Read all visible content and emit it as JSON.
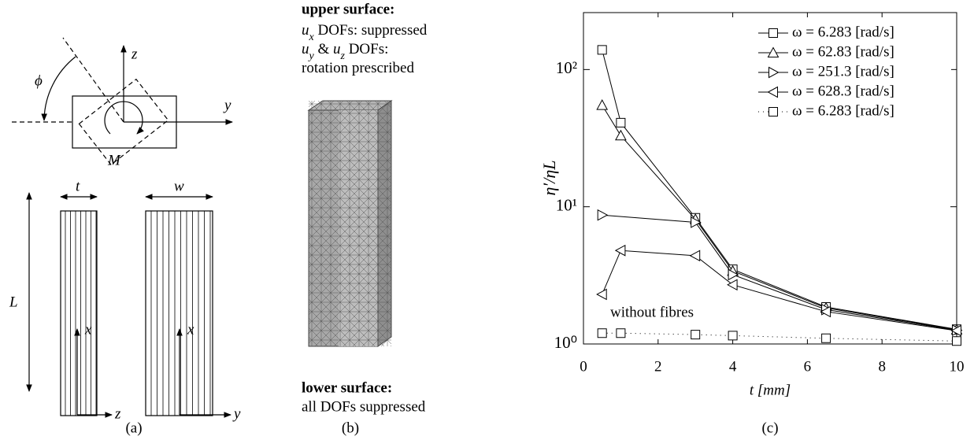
{
  "panel_a": {
    "labels": {
      "phi": "ϕ",
      "z_top": "z",
      "y_top": "y",
      "moment": "M",
      "thickness": "t",
      "width": "w",
      "length": "L",
      "x_left": "x",
      "z_bottom": "z",
      "x_right": "x",
      "y_bottom": "y"
    },
    "caption": "(a)"
  },
  "panel_b": {
    "upper_heading": "upper surface:",
    "upper_lines": [
      [
        {
          "text": "u"
        },
        {
          "text": "x",
          "sub": true
        },
        {
          "text": " DOFs: suppressed"
        }
      ],
      [
        {
          "text": "u"
        },
        {
          "text": "y",
          "sub": true
        },
        {
          "text": " & "
        },
        {
          "text": "u"
        },
        {
          "text": "z",
          "sub": true
        },
        {
          "text": " DOFs:"
        }
      ],
      [
        {
          "text": "rotation prescribed"
        }
      ]
    ],
    "lower_heading": "lower surface:",
    "lower_lines": [
      "all DOFs suppressed"
    ],
    "caption": "(b)"
  },
  "chart_data": {
    "type": "line",
    "xlabel": "t [mm]",
    "ylabel": "η′/ηL",
    "caption": "(c)",
    "xlim": [
      0,
      10
    ],
    "ylim": [
      1,
      260
    ],
    "yscale": "log",
    "xticks": [
      0,
      2,
      4,
      6,
      8,
      10
    ],
    "yticks": [
      {
        "value": 1,
        "label": "10⁰"
      },
      {
        "value": 10,
        "label": "10¹"
      },
      {
        "value": 100,
        "label": "10²"
      }
    ],
    "legend": "upper right",
    "annotations": [
      "without fibres"
    ],
    "series": [
      {
        "name": "ω = 6.283 [rad/s]",
        "color": "#000000",
        "marker": "square",
        "linestyle": "solid",
        "x": [
          0.5,
          1,
          3,
          4,
          6.5,
          10
        ],
        "values": [
          139,
          41,
          8.3,
          3.5,
          1.86,
          1.28
        ]
      },
      {
        "name": "ω = 62.83 [rad/s]",
        "color": "#000000",
        "marker": "triangle-up",
        "linestyle": "solid",
        "x": [
          0.5,
          1,
          3,
          4,
          6.5,
          10
        ],
        "values": [
          55,
          33,
          8.1,
          3.4,
          1.83,
          1.27
        ]
      },
      {
        "name": "ω = 251.3 [rad/s]",
        "color": "#000000",
        "marker": "triangle-right",
        "linestyle": "solid",
        "x": [
          0.5,
          3,
          4,
          6.5,
          10
        ],
        "values": [
          8.7,
          7.7,
          3.2,
          1.78,
          1.26
        ]
      },
      {
        "name": "ω = 628.3 [rad/s]",
        "color": "#000000",
        "marker": "triangle-left",
        "linestyle": "solid",
        "x": [
          0.5,
          1,
          3,
          4,
          6.5,
          10
        ],
        "values": [
          2.3,
          4.8,
          4.4,
          2.7,
          1.72,
          1.25
        ]
      },
      {
        "name": "ω = 6.283 [rad/s]",
        "color": "#000000",
        "marker": "square",
        "linestyle": "dotted",
        "x": [
          0.5,
          1,
          3,
          4,
          6.5,
          10
        ],
        "values": [
          1.2,
          1.2,
          1.17,
          1.15,
          1.1,
          1.05
        ]
      }
    ]
  }
}
